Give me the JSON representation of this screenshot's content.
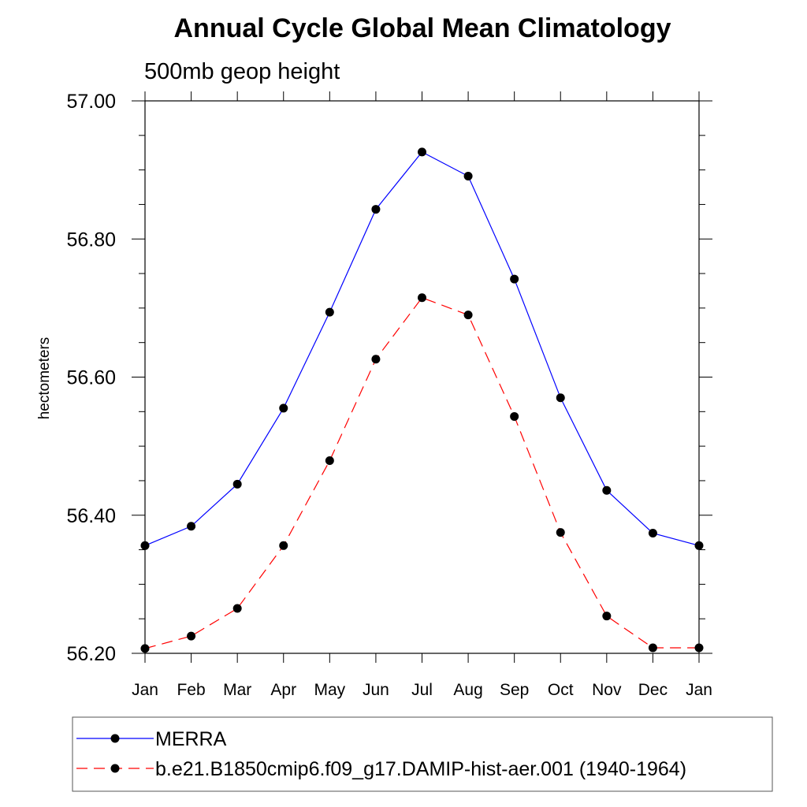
{
  "chart_data": {
    "type": "line",
    "title": "Annual Cycle Global Mean Climatology",
    "subtitle": "500mb geop height",
    "ylabel": "hectometers",
    "xlabel": "",
    "categories": [
      "Jan",
      "Feb",
      "Mar",
      "Apr",
      "May",
      "Jun",
      "Jul",
      "Aug",
      "Sep",
      "Oct",
      "Nov",
      "Dec",
      "Jan"
    ],
    "ylim": [
      56.2,
      57.0
    ],
    "yticks": [
      "56.20",
      "56.40",
      "56.60",
      "56.80",
      "57.00"
    ],
    "series": [
      {
        "name": "MERRA",
        "color": "#0000ff",
        "dash": "solid",
        "values": [
          56.356,
          56.384,
          56.445,
          56.555,
          56.694,
          56.843,
          56.926,
          56.891,
          56.742,
          56.57,
          56.436,
          56.374,
          56.356
        ]
      },
      {
        "name": "b.e21.B1850cmip6.f09_g17.DAMIP-hist-aer.001 (1940-1964)",
        "color": "#ff0000",
        "dash": "dashed",
        "values": [
          56.207,
          56.225,
          56.265,
          56.356,
          56.479,
          56.626,
          56.715,
          56.69,
          56.543,
          56.375,
          56.254,
          56.208,
          56.208
        ]
      }
    ],
    "marker": "filled-circle",
    "marker_color": "#000000",
    "legend_position": "bottom"
  }
}
